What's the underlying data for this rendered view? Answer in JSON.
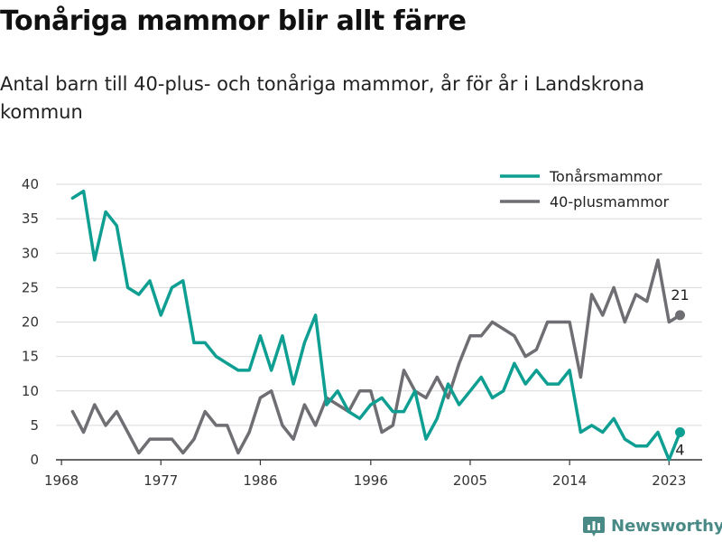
{
  "title": "Tonåriga mammor blir allt färre",
  "subtitle": "Antal barn till 40-plus- och tonåriga mammor, år för år i Landskrona kommun",
  "brand": "Newsworthy",
  "colors": {
    "teen": "#0f9f92",
    "forty": "#6e6e73",
    "grid": "#d9d9d9",
    "axis": "#333333"
  },
  "chart_data": {
    "type": "line",
    "x": [
      1969,
      1970,
      1971,
      1972,
      1973,
      1974,
      1975,
      1976,
      1977,
      1978,
      1979,
      1980,
      1981,
      1982,
      1983,
      1984,
      1985,
      1986,
      1987,
      1988,
      1989,
      1990,
      1991,
      1992,
      1993,
      1994,
      1995,
      1996,
      1997,
      1998,
      1999,
      2000,
      2001,
      2002,
      2003,
      2004,
      2005,
      2006,
      2007,
      2008,
      2009,
      2010,
      2011,
      2012,
      2013,
      2014,
      2015,
      2016,
      2017,
      2018,
      2019,
      2020,
      2021,
      2022,
      2023,
      2024
    ],
    "series": [
      {
        "name": "Tonårsmammor",
        "color": "#0f9f92",
        "values": [
          38,
          39,
          29,
          36,
          34,
          25,
          24,
          26,
          21,
          25,
          26,
          17,
          17,
          15,
          14,
          13,
          13,
          18,
          13,
          18,
          11,
          17,
          21,
          8,
          10,
          7,
          6,
          8,
          9,
          7,
          7,
          10,
          3,
          6,
          11,
          8,
          10,
          12,
          9,
          10,
          14,
          11,
          13,
          11,
          11,
          13,
          4,
          5,
          4,
          6,
          3,
          2,
          2,
          4,
          0,
          4
        ]
      },
      {
        "name": "40-plusmammor",
        "color": "#6e6e73",
        "values": [
          7,
          4,
          8,
          5,
          7,
          4,
          1,
          3,
          3,
          3,
          1,
          3,
          7,
          5,
          5,
          1,
          4,
          9,
          10,
          5,
          3,
          8,
          5,
          9,
          8,
          7,
          10,
          10,
          4,
          5,
          13,
          10,
          9,
          12,
          9,
          14,
          18,
          18,
          20,
          19,
          18,
          15,
          16,
          20,
          20,
          20,
          12,
          24,
          21,
          25,
          20,
          24,
          23,
          29,
          20,
          21
        ]
      }
    ],
    "xticks": [
      1968,
      1977,
      1986,
      1996,
      2005,
      2014,
      2023
    ],
    "yticks": [
      0,
      5,
      10,
      15,
      20,
      25,
      30,
      35,
      40
    ],
    "xlim": [
      1967.5,
      2026
    ],
    "ylim": [
      0,
      40
    ],
    "end_labels": [
      {
        "series": "40-plusmammor",
        "x": 2024,
        "value": 21,
        "text": "21"
      },
      {
        "series": "Tonårsmammor",
        "x": 2024,
        "value": 4,
        "text": "4"
      }
    ],
    "legend_position": "top-right",
    "grid": "horizontal"
  }
}
